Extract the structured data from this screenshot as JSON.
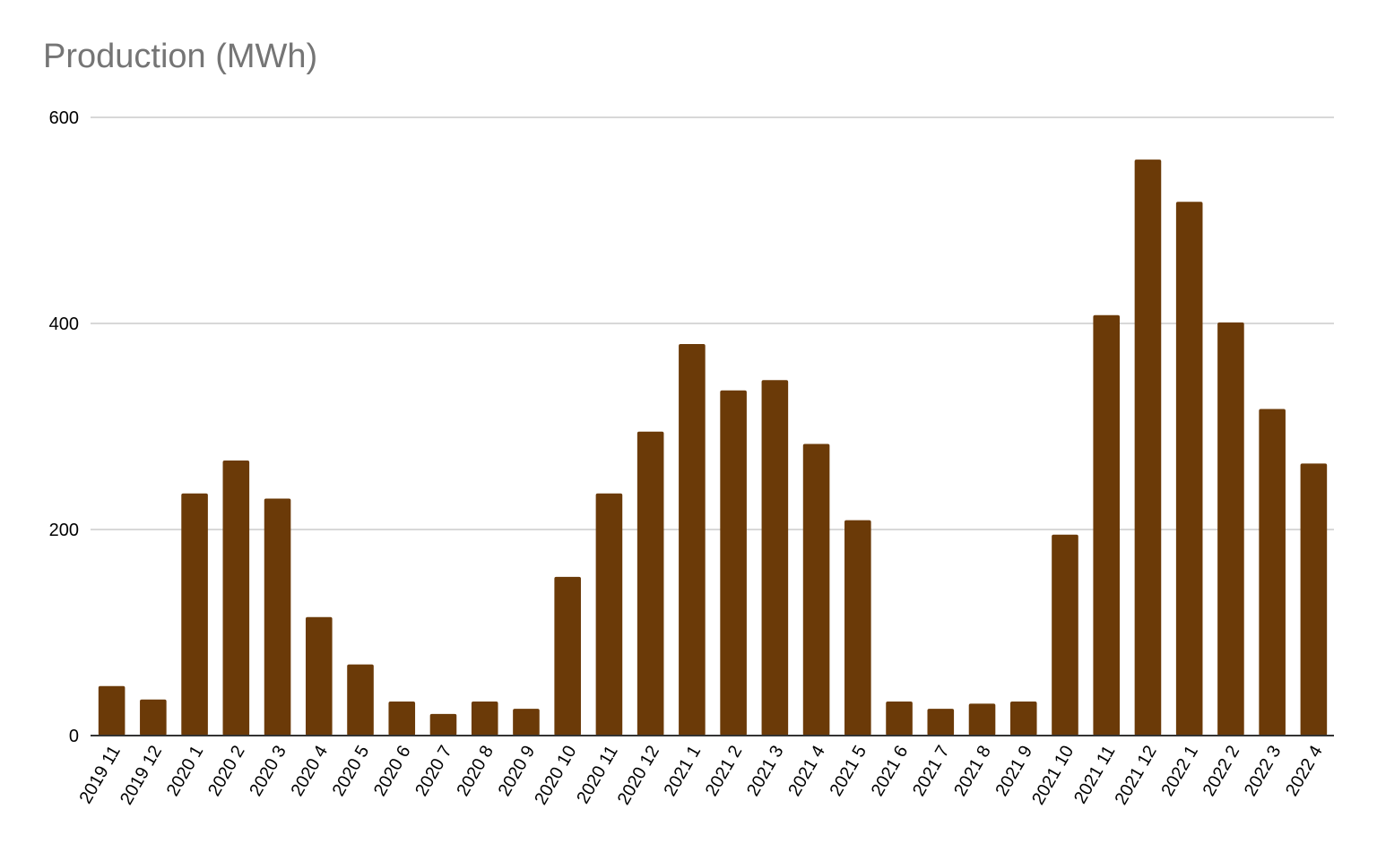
{
  "chart_data": {
    "type": "bar",
    "title": "Production (MWh)",
    "xlabel": "",
    "ylabel": "",
    "ylim": [
      0,
      600
    ],
    "yticks": [
      0,
      200,
      400,
      600
    ],
    "grid": true,
    "bar_color": "#6b3a08",
    "grid_color": "#cccccc",
    "axis_color": "#333333",
    "title_color": "#757575",
    "categories": [
      "2019 11",
      "2019 12",
      "2020 1",
      "2020 2",
      "2020 3",
      "2020 4",
      "2020 5",
      "2020 6",
      "2020 7",
      "2020 8",
      "2020 9",
      "2020 10",
      "2020 11",
      "2020 12",
      "2021 1",
      "2021 2",
      "2021 3",
      "2021 4",
      "2021 5",
      "2021 6",
      "2021 7",
      "2021 8",
      "2021 9",
      "2021 10",
      "2021 11",
      "2021 12",
      "2022 1",
      "2022 2",
      "2022 3",
      "2022 4"
    ],
    "values": [
      48,
      35,
      235,
      267,
      230,
      115,
      69,
      33,
      21,
      33,
      26,
      154,
      235,
      295,
      380,
      335,
      345,
      283,
      209,
      33,
      26,
      31,
      33,
      195,
      408,
      559,
      518,
      401,
      317,
      264
    ]
  }
}
